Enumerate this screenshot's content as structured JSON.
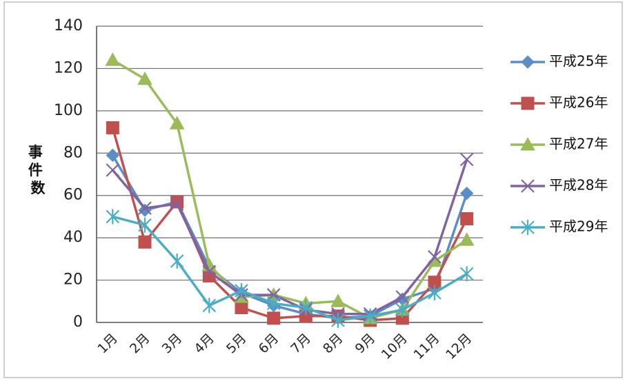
{
  "chart_data": {
    "type": "line",
    "title": "",
    "xlabel": "",
    "ylabel": "事件数",
    "ylim": [
      0,
      140
    ],
    "yticks": [
      "0",
      "20",
      "40",
      "60",
      "80",
      "100",
      "120",
      "140"
    ],
    "grid": true,
    "legend_position": "right",
    "categories": [
      "1月",
      "2月",
      "3月",
      "4月",
      "5月",
      "6月",
      "7月",
      "8月",
      "9月",
      "10月",
      "11月",
      "12月"
    ],
    "series": [
      {
        "name": "平成25年",
        "color": "#5b8ec9",
        "marker": "diamond",
        "values": [
          79,
          53,
          57,
          26,
          14,
          8,
          4,
          2,
          3,
          11,
          16,
          61
        ]
      },
      {
        "name": "平成26年",
        "color": "#c0504d",
        "marker": "square",
        "values": [
          92,
          38,
          57,
          22,
          7,
          2,
          3,
          3,
          1,
          2,
          19,
          49
        ]
      },
      {
        "name": "平成27年",
        "color": "#9bbb59",
        "marker": "triangle",
        "values": [
          124,
          115,
          94,
          27,
          12,
          13,
          9,
          10,
          2,
          6,
          29,
          39
        ]
      },
      {
        "name": "平成28年",
        "color": "#8064a2",
        "marker": "x",
        "values": [
          72,
          54,
          56,
          24,
          13,
          13,
          6,
          4,
          4,
          12,
          31,
          77
        ]
      },
      {
        "name": "平成29年",
        "color": "#4bacc6",
        "marker": "star",
        "values": [
          50,
          46,
          29,
          8,
          15,
          9,
          7,
          1,
          3,
          6,
          14,
          23
        ]
      }
    ]
  }
}
